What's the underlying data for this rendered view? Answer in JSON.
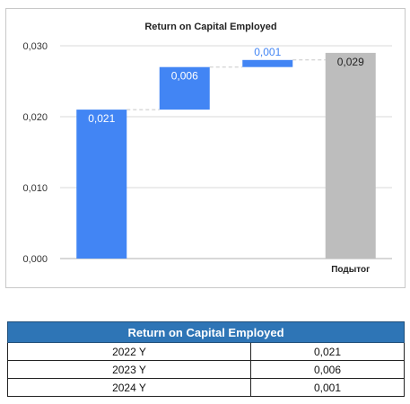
{
  "chart_data": {
    "type": "waterfall",
    "title": "Return on Capital Employed",
    "xlabel": "",
    "ylabel": "",
    "ylim": [
      0,
      0.03
    ],
    "y_ticks": [
      "0,000",
      "0,010",
      "0,020",
      "0,030"
    ],
    "categories": [
      "",
      "",
      "",
      "Подытог"
    ],
    "steps": [
      {
        "label": "0,021",
        "value": 0.021
      },
      {
        "label": "0,006",
        "value": 0.006
      },
      {
        "label": "0,001",
        "value": 0.001
      }
    ],
    "total": {
      "label": "0,029",
      "value": 0.029
    },
    "grid": true,
    "colors": {
      "increase": "#4285f4",
      "total": "#bdbdbd",
      "grid": "#d9d9d9",
      "connector": "#c8c8c8"
    }
  },
  "table": {
    "header": "Return on Capital Employed",
    "rows": [
      {
        "year": "2022 Y",
        "value": "0,021"
      },
      {
        "year": "2023 Y",
        "value": "0,006"
      },
      {
        "year": "2024 Y",
        "value": "0,001"
      }
    ]
  }
}
